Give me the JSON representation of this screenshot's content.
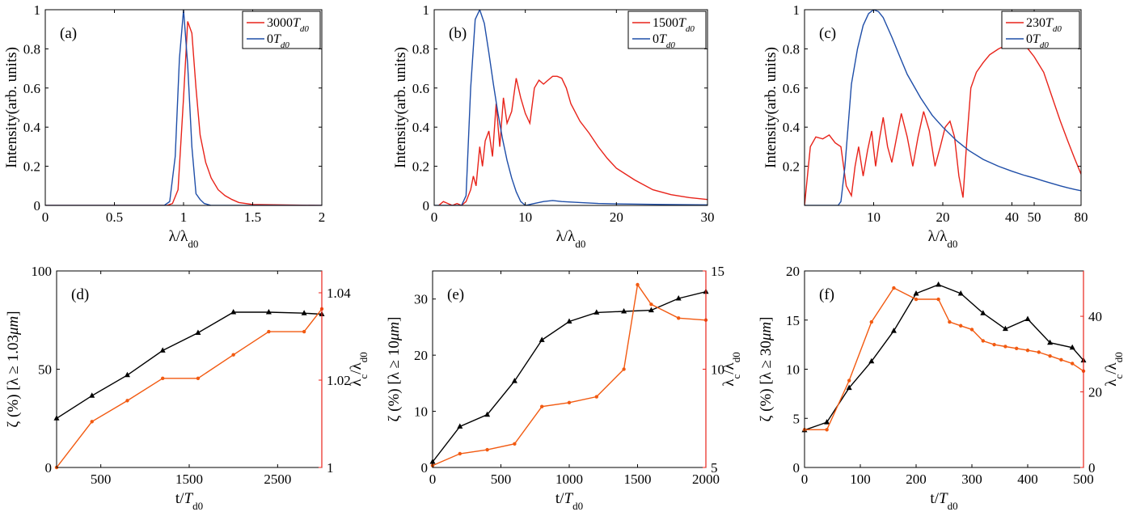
{
  "chart_data": [
    {
      "panel": "a",
      "type": "line",
      "panel_label": "(a)",
      "xlabel": "λ/λd0",
      "ylabel": "Intensity(arb. units)",
      "xlim": [
        0,
        2
      ],
      "ylim": [
        0,
        1
      ],
      "xticks": [
        0,
        0.5,
        1,
        1.5,
        2
      ],
      "xtick_labels": [
        "0",
        "0.5",
        "1",
        "1.5",
        "2"
      ],
      "yticks": [
        0,
        0.2,
        0.4,
        0.6,
        0.8,
        1
      ],
      "ytick_labels": [
        "0",
        "0.2",
        "0.4",
        "0.6",
        "0.8",
        "1"
      ],
      "legend_position": "top-right",
      "series": [
        {
          "name": "3000Td0",
          "color": "#e8231a",
          "x": [
            0,
            0.88,
            0.92,
            0.96,
            1.0,
            1.03,
            1.06,
            1.09,
            1.12,
            1.16,
            1.2,
            1.25,
            1.3,
            1.35,
            1.4,
            1.5,
            2.0
          ],
          "y": [
            0,
            0,
            0.01,
            0.08,
            0.55,
            0.94,
            0.88,
            0.6,
            0.36,
            0.22,
            0.14,
            0.08,
            0.05,
            0.03,
            0.015,
            0.005,
            0
          ]
        },
        {
          "name": "0Td0",
          "color": "#1f4ea8",
          "x": [
            0,
            0.86,
            0.9,
            0.94,
            0.97,
            1.0,
            1.03,
            1.06,
            1.09,
            1.12,
            1.15,
            1.2,
            2.0
          ],
          "y": [
            0,
            0,
            0.02,
            0.25,
            0.75,
            1.0,
            0.72,
            0.3,
            0.06,
            0.03,
            0.01,
            0,
            0
          ]
        }
      ]
    },
    {
      "panel": "b",
      "type": "line",
      "panel_label": "(b)",
      "xlabel": "λ/λd0",
      "ylabel": "Intensity(arb. units)",
      "xlim": [
        0,
        30
      ],
      "ylim": [
        0,
        1
      ],
      "xticks": [
        0,
        10,
        20,
        30
      ],
      "xtick_labels": [
        "0",
        "10",
        "20",
        "30"
      ],
      "yticks": [
        0,
        0.2,
        0.4,
        0.6,
        0.8,
        1
      ],
      "ytick_labels": [
        "0",
        "0.2",
        "0.4",
        "0.6",
        "0.8",
        "1"
      ],
      "legend_position": "top-right",
      "series": [
        {
          "name": "1500Td0",
          "color": "#e8231a",
          "x": [
            0.5,
            1,
            1.5,
            2,
            2.5,
            3,
            3.5,
            4,
            4.3,
            4.6,
            5,
            5.3,
            5.6,
            6,
            6.4,
            6.8,
            7.2,
            7.6,
            8,
            8.5,
            9,
            9.5,
            10,
            10.5,
            11,
            11.5,
            12,
            12.5,
            13,
            13.5,
            14,
            14.5,
            15,
            16,
            17,
            18,
            19,
            20,
            22,
            24,
            26,
            28,
            30
          ],
          "y": [
            0,
            0.02,
            0.01,
            0.0,
            0.01,
            0.0,
            0.02,
            0.08,
            0.15,
            0.1,
            0.3,
            0.2,
            0.33,
            0.38,
            0.25,
            0.52,
            0.3,
            0.55,
            0.42,
            0.48,
            0.65,
            0.55,
            0.47,
            0.42,
            0.6,
            0.64,
            0.62,
            0.64,
            0.66,
            0.66,
            0.65,
            0.6,
            0.52,
            0.43,
            0.37,
            0.3,
            0.24,
            0.19,
            0.13,
            0.08,
            0.055,
            0.04,
            0.03
          ]
        },
        {
          "name": "0Td0",
          "color": "#1f4ea8",
          "x": [
            0,
            3,
            3.5,
            4,
            4.5,
            5,
            5.5,
            6,
            6.5,
            7,
            7.5,
            8,
            8.5,
            9,
            9.5,
            10,
            11,
            12,
            13,
            14,
            16,
            18,
            20,
            25,
            30
          ],
          "y": [
            0,
            0,
            0.05,
            0.6,
            0.95,
            1.0,
            0.93,
            0.78,
            0.62,
            0.47,
            0.34,
            0.23,
            0.14,
            0.07,
            0.02,
            0.0,
            0.01,
            0.02,
            0.025,
            0.02,
            0.015,
            0.01,
            0.008,
            0.005,
            0.003
          ]
        }
      ]
    },
    {
      "panel": "c",
      "type": "line",
      "panel_label": "(c)",
      "xlabel": "λ/λd0",
      "ylabel": "Intensity(arb. units)",
      "xscale": "log",
      "xlim": [
        5,
        80
      ],
      "ylim": [
        0,
        1
      ],
      "xticks": [
        10,
        20,
        40,
        50,
        80
      ],
      "xtick_labels": [
        "10",
        "20",
        "40",
        "50",
        "80"
      ],
      "yticks": [
        0.2,
        0.4,
        0.6,
        0.8,
        1
      ],
      "ytick_labels": [
        "0.2",
        "0.4",
        "0.6",
        "0.8",
        "1"
      ],
      "legend_position": "top-right",
      "series": [
        {
          "name": "230Td0",
          "color": "#e8231a",
          "x": [
            5,
            5.3,
            5.6,
            6,
            6.4,
            6.8,
            7.2,
            7.6,
            8.0,
            8.3,
            8.6,
            9.0,
            9.4,
            9.8,
            10.2,
            10.6,
            11.0,
            11.5,
            12.0,
            12.6,
            13.2,
            14.0,
            14.8,
            15.6,
            16.5,
            17.5,
            18.5,
            19.5,
            20.5,
            21.5,
            22.5,
            23.5,
            24.5,
            25.5,
            26.5,
            28,
            30,
            32,
            35,
            38,
            41,
            44,
            47,
            50,
            55,
            60,
            65,
            70,
            75,
            80
          ],
          "y": [
            0.0,
            0.3,
            0.35,
            0.34,
            0.36,
            0.32,
            0.3,
            0.1,
            0.05,
            0.2,
            0.3,
            0.15,
            0.28,
            0.38,
            0.2,
            0.34,
            0.45,
            0.3,
            0.22,
            0.35,
            0.47,
            0.35,
            0.2,
            0.35,
            0.48,
            0.38,
            0.2,
            0.3,
            0.4,
            0.43,
            0.35,
            0.15,
            0.04,
            0.35,
            0.6,
            0.68,
            0.73,
            0.77,
            0.8,
            0.82,
            0.84,
            0.83,
            0.8,
            0.76,
            0.68,
            0.55,
            0.43,
            0.33,
            0.24,
            0.16
          ]
        },
        {
          "name": "0Td0",
          "color": "#1f4ea8",
          "x": [
            5,
            7.0,
            7.2,
            7.5,
            8,
            8.5,
            9,
            9.5,
            10,
            10.5,
            11,
            12,
            13,
            14,
            16,
            18,
            20,
            23,
            26,
            30,
            35,
            40,
            45,
            50,
            55,
            60,
            65,
            70,
            75,
            80
          ],
          "y": [
            0,
            0,
            0.02,
            0.2,
            0.62,
            0.8,
            0.92,
            0.98,
            1.0,
            0.99,
            0.96,
            0.86,
            0.76,
            0.67,
            0.55,
            0.46,
            0.4,
            0.33,
            0.28,
            0.235,
            0.2,
            0.175,
            0.155,
            0.14,
            0.125,
            0.112,
            0.1,
            0.09,
            0.082,
            0.075
          ]
        }
      ]
    },
    {
      "panel": "d",
      "type": "line",
      "panel_label": "(d)",
      "xlabel": "t/Td0",
      "ylabel_left": "ζ (%) [λ ≥ 1.03μm]",
      "ylabel_right": "λc/λd0",
      "xlim": [
        0,
        3000
      ],
      "ylim_left": [
        0,
        100
      ],
      "ylim_right": [
        1,
        1.045
      ],
      "xticks": [
        500,
        1500,
        2500
      ],
      "xtick_labels": [
        "500",
        "1500",
        "2500"
      ],
      "yticks_left": [
        0,
        50,
        100
      ],
      "ytick_labels_left": [
        "0",
        "50",
        "100"
      ],
      "yticks_right": [
        1,
        1.02,
        1.04
      ],
      "ytick_labels_right": [
        "1",
        "1.02",
        "1.04"
      ],
      "series": [
        {
          "name": "ζ",
          "axis": "left",
          "color": "#000000",
          "marker": "triangle",
          "x": [
            0,
            400,
            800,
            1200,
            1600,
            2000,
            2400,
            2800,
            3000
          ],
          "y": [
            25,
            36.5,
            47,
            59.5,
            68.5,
            79,
            79,
            78.5,
            78
          ]
        },
        {
          "name": "λc/λd0",
          "axis": "right",
          "color": "#f25a11",
          "marker": "dot",
          "x": [
            0,
            400,
            800,
            1200,
            1600,
            2000,
            2400,
            2800,
            3000
          ],
          "y": [
            1.0,
            1.0105,
            1.0153,
            1.0204,
            1.0204,
            1.0258,
            1.0311,
            1.0311,
            1.0363
          ]
        }
      ]
    },
    {
      "panel": "e",
      "type": "line",
      "panel_label": "(e)",
      "xlabel": "t/Td0",
      "ylabel_left": "ζ (%) [λ ≥ 10μm]",
      "ylabel_right": "λc/λd0",
      "xlim": [
        0,
        2000
      ],
      "ylim_left": [
        0,
        35
      ],
      "ylim_right": [
        5,
        15
      ],
      "xticks": [
        0,
        500,
        1000,
        1500,
        2000
      ],
      "xtick_labels": [
        "0",
        "500",
        "1000",
        "1500",
        "2000"
      ],
      "yticks_left": [
        0,
        10,
        20,
        30
      ],
      "ytick_labels_left": [
        "0",
        "10",
        "20",
        "30"
      ],
      "yticks_right": [
        5,
        10,
        15
      ],
      "ytick_labels_right": [
        "5",
        "10",
        "15"
      ],
      "series": [
        {
          "name": "ζ",
          "axis": "left",
          "color": "#000000",
          "marker": "triangle",
          "x": [
            0,
            200,
            400,
            600,
            800,
            1000,
            1200,
            1400,
            1600,
            1800,
            2000
          ],
          "y": [
            1.0,
            7.3,
            9.4,
            15.4,
            22.7,
            26.0,
            27.6,
            27.8,
            28.0,
            30.1,
            31.3
          ]
        },
        {
          "name": "λc/λd0",
          "axis": "right",
          "color": "#f25a11",
          "marker": "dot",
          "x": [
            0,
            200,
            400,
            600,
            800,
            1000,
            1200,
            1400,
            1500,
            1600,
            1800,
            2000
          ],
          "y": [
            5.1,
            5.7,
            5.9,
            6.2,
            8.1,
            8.3,
            8.6,
            10.0,
            14.3,
            13.3,
            12.6,
            12.5
          ]
        }
      ]
    },
    {
      "panel": "f",
      "type": "line",
      "panel_label": "(f)",
      "xlabel": "t/Td0",
      "ylabel_left": "ζ (%) [λ ≥ 30μm]",
      "ylabel_right": "λc/λd0",
      "xlim": [
        0,
        500
      ],
      "ylim_left": [
        0,
        20
      ],
      "ylim_right": [
        0,
        52
      ],
      "xticks": [
        0,
        100,
        200,
        300,
        400,
        500
      ],
      "xtick_labels": [
        "0",
        "100",
        "200",
        "300",
        "400",
        "500"
      ],
      "yticks_left": [
        0,
        5,
        10,
        15,
        20
      ],
      "ytick_labels_left": [
        "0",
        "5",
        "10",
        "15",
        "20"
      ],
      "yticks_right": [
        0,
        20,
        40
      ],
      "ytick_labels_right": [
        "0",
        "20",
        "40"
      ],
      "series": [
        {
          "name": "ζ",
          "axis": "left",
          "color": "#000000",
          "marker": "triangle",
          "x": [
            0,
            40,
            80,
            120,
            160,
            200,
            240,
            280,
            320,
            360,
            400,
            440,
            480,
            500
          ],
          "y": [
            3.8,
            4.6,
            8.1,
            10.8,
            13.9,
            17.7,
            18.6,
            17.7,
            15.7,
            14.1,
            15.1,
            12.7,
            12.2,
            10.9
          ]
        },
        {
          "name": "λc/λd0",
          "axis": "right",
          "color": "#f25a11",
          "marker": "dot",
          "x": [
            0,
            40,
            80,
            120,
            160,
            200,
            240,
            260,
            280,
            300,
            320,
            340,
            360,
            380,
            400,
            420,
            440,
            460,
            480,
            500
          ],
          "y": [
            10,
            10,
            23,
            38.5,
            47.5,
            44.5,
            44.5,
            38.5,
            37.5,
            36.5,
            33.5,
            32.5,
            32,
            31.5,
            31,
            30.5,
            29.5,
            28.5,
            27.5,
            25.5
          ]
        }
      ]
    }
  ]
}
